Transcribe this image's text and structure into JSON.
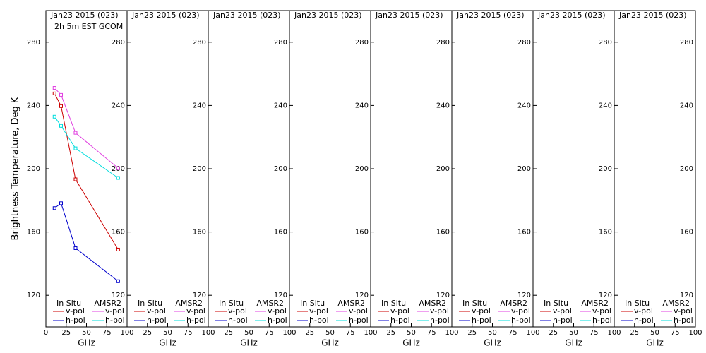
{
  "chart_data": [
    {
      "type": "line",
      "title": "Jan23 2015 (023)",
      "subtitle": "2h 5m EST GCOM",
      "ylabel": "Brightness Temperature, Deg K",
      "xlabel": "GHz",
      "xlim": [
        0,
        100
      ],
      "xticks": [
        0,
        25,
        50,
        75,
        100
      ],
      "ylim": [
        100,
        300
      ],
      "yticks": [
        120,
        160,
        200,
        240,
        280
      ],
      "legend_groups": [
        "In Situ",
        "AMSR2"
      ],
      "x": [
        10.65,
        18.7,
        36.5,
        89.0
      ],
      "series": [
        {
          "name": "v-pol",
          "group": 0,
          "color": "#cc0000",
          "values": [
            247.6,
            239.6,
            193.3,
            148.9
          ]
        },
        {
          "name": "h-pol",
          "group": 0,
          "color": "#0000cc",
          "values": [
            175.1,
            178.2,
            149.8,
            128.9
          ]
        },
        {
          "name": "v-pol",
          "group": 1,
          "color": "#e040e0",
          "values": [
            251.1,
            246.7,
            222.7,
            200.4
          ]
        },
        {
          "name": "h-pol",
          "group": 1,
          "color": "#00dddd",
          "values": [
            232.9,
            227.1,
            212.9,
            194.2
          ]
        }
      ]
    },
    {
      "type": "line",
      "title": "Jan23 2015 (023)",
      "xlabel": "GHz",
      "xlim": [
        0,
        100
      ],
      "xticks": [
        25,
        50,
        75,
        100
      ],
      "ylim": [
        100,
        300
      ],
      "yticks": [
        120,
        160,
        200,
        240,
        280
      ],
      "legend_groups": [
        "In Situ",
        "AMSR2"
      ],
      "x": [],
      "series": [
        {
          "name": "v-pol",
          "group": 0,
          "color": "#cc0000",
          "values": []
        },
        {
          "name": "h-pol",
          "group": 0,
          "color": "#0000cc",
          "values": []
        },
        {
          "name": "v-pol",
          "group": 1,
          "color": "#e040e0",
          "values": []
        },
        {
          "name": "h-pol",
          "group": 1,
          "color": "#00dddd",
          "values": []
        }
      ]
    },
    {
      "type": "line",
      "title": "Jan23 2015 (023)",
      "xlabel": "GHz",
      "xlim": [
        0,
        100
      ],
      "xticks": [
        25,
        50,
        75,
        100
      ],
      "ylim": [
        100,
        300
      ],
      "yticks": [
        120,
        160,
        200,
        240,
        280
      ],
      "legend_groups": [
        "In Situ",
        "AMSR2"
      ],
      "x": [],
      "series": [
        {
          "name": "v-pol",
          "group": 0,
          "color": "#cc0000",
          "values": []
        },
        {
          "name": "h-pol",
          "group": 0,
          "color": "#0000cc",
          "values": []
        },
        {
          "name": "v-pol",
          "group": 1,
          "color": "#e040e0",
          "values": []
        },
        {
          "name": "h-pol",
          "group": 1,
          "color": "#00dddd",
          "values": []
        }
      ]
    },
    {
      "type": "line",
      "title": "Jan23 2015 (023)",
      "xlabel": "GHz",
      "xlim": [
        0,
        100
      ],
      "xticks": [
        25,
        50,
        75,
        100
      ],
      "ylim": [
        100,
        300
      ],
      "yticks": [
        120,
        160,
        200,
        240,
        280
      ],
      "legend_groups": [
        "In Situ",
        "AMSR2"
      ],
      "x": [],
      "series": [
        {
          "name": "v-pol",
          "group": 0,
          "color": "#cc0000",
          "values": []
        },
        {
          "name": "h-pol",
          "group": 0,
          "color": "#0000cc",
          "values": []
        },
        {
          "name": "v-pol",
          "group": 1,
          "color": "#e040e0",
          "values": []
        },
        {
          "name": "h-pol",
          "group": 1,
          "color": "#00dddd",
          "values": []
        }
      ]
    },
    {
      "type": "line",
      "title": "Jan23 2015 (023)",
      "xlabel": "GHz",
      "xlim": [
        0,
        100
      ],
      "xticks": [
        25,
        50,
        75,
        100
      ],
      "ylim": [
        100,
        300
      ],
      "yticks": [
        120,
        160,
        200,
        240,
        280
      ],
      "legend_groups": [
        "In Situ",
        "AMSR2"
      ],
      "x": [],
      "series": [
        {
          "name": "v-pol",
          "group": 0,
          "color": "#cc0000",
          "values": []
        },
        {
          "name": "h-pol",
          "group": 0,
          "color": "#0000cc",
          "values": []
        },
        {
          "name": "v-pol",
          "group": 1,
          "color": "#e040e0",
          "values": []
        },
        {
          "name": "h-pol",
          "group": 1,
          "color": "#00dddd",
          "values": []
        }
      ]
    },
    {
      "type": "line",
      "title": "Jan23 2015 (023)",
      "xlabel": "GHz",
      "xlim": [
        0,
        100
      ],
      "xticks": [
        25,
        50,
        75,
        100
      ],
      "ylim": [
        100,
        300
      ],
      "yticks": [
        120,
        160,
        200,
        240,
        280
      ],
      "legend_groups": [
        "In Situ",
        "AMSR2"
      ],
      "x": [],
      "series": [
        {
          "name": "v-pol",
          "group": 0,
          "color": "#cc0000",
          "values": []
        },
        {
          "name": "h-pol",
          "group": 0,
          "color": "#0000cc",
          "values": []
        },
        {
          "name": "v-pol",
          "group": 1,
          "color": "#e040e0",
          "values": []
        },
        {
          "name": "h-pol",
          "group": 1,
          "color": "#00dddd",
          "values": []
        }
      ]
    },
    {
      "type": "line",
      "title": "Jan23 2015 (023)",
      "xlabel": "GHz",
      "xlim": [
        0,
        100
      ],
      "xticks": [
        25,
        50,
        75,
        100
      ],
      "ylim": [
        100,
        300
      ],
      "yticks": [
        120,
        160,
        200,
        240,
        280
      ],
      "legend_groups": [
        "In Situ",
        "AMSR2"
      ],
      "x": [],
      "series": [
        {
          "name": "v-pol",
          "group": 0,
          "color": "#cc0000",
          "values": []
        },
        {
          "name": "h-pol",
          "group": 0,
          "color": "#0000cc",
          "values": []
        },
        {
          "name": "v-pol",
          "group": 1,
          "color": "#e040e0",
          "values": []
        },
        {
          "name": "h-pol",
          "group": 1,
          "color": "#00dddd",
          "values": []
        }
      ]
    },
    {
      "type": "line",
      "title": "Jan23 2015 (023)",
      "xlabel": "GHz",
      "xlim": [
        0,
        100
      ],
      "xticks": [
        25,
        50,
        75,
        100
      ],
      "ylim": [
        100,
        300
      ],
      "yticks": [
        120,
        160,
        200,
        240,
        280
      ],
      "legend_groups": [
        "In Situ",
        "AMSR2"
      ],
      "x": [],
      "series": [
        {
          "name": "v-pol",
          "group": 0,
          "color": "#cc0000",
          "values": []
        },
        {
          "name": "h-pol",
          "group": 0,
          "color": "#0000cc",
          "values": []
        },
        {
          "name": "v-pol",
          "group": 1,
          "color": "#e040e0",
          "values": []
        },
        {
          "name": "h-pol",
          "group": 1,
          "color": "#00dddd",
          "values": []
        }
      ]
    }
  ]
}
